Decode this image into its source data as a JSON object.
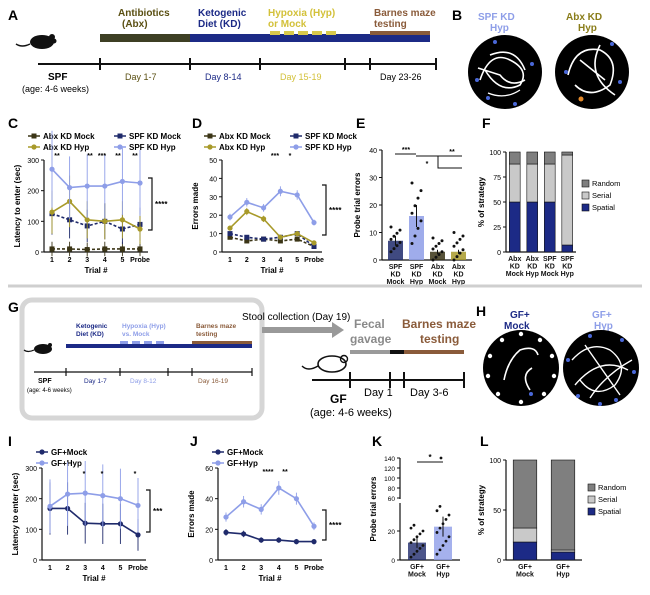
{
  "panels": {
    "A": "A",
    "B": "B",
    "C": "C",
    "D": "D",
    "E": "E",
    "F": "F",
    "G": "G",
    "H": "H",
    "I": "I",
    "J": "J",
    "K": "K",
    "L": "L"
  },
  "panelA": {
    "phases": [
      "Antibiotics\n(Abx)",
      "Ketogenic\nDiet (KD)",
      "Hypoxia (Hyp)\nor Mock",
      "Barnes maze\ntesting"
    ],
    "left_label": "SPF",
    "left_sub": "(age: 4-6 weeks)",
    "days": [
      "Day 1-7",
      "Day 8-14",
      "Day 15-19",
      "Day 23-26"
    ]
  },
  "panelB": {
    "labels": [
      "SPF KD\nHyp",
      "Abx KD\nHyp"
    ]
  },
  "panelC": {
    "legend": [
      "Abx KD Mock",
      "SPF KD Mock",
      "Abx KD Hyp",
      "SPF KD Hyp"
    ],
    "ylabel": "Latency to enter (sec)",
    "xlabel": "Trial #",
    "xticks": [
      "1",
      "2",
      "3",
      "4",
      "5",
      "Probe"
    ],
    "yticks": [
      "0",
      "100",
      "200",
      "300"
    ],
    "sig_top": [
      "**",
      "**",
      "***",
      "**",
      "**"
    ],
    "sig_side": "****"
  },
  "panelD": {
    "legend": [
      "Abx KD Mock",
      "SPF KD Mock",
      "Abx KD Hyp",
      "SPF KD Hyp"
    ],
    "ylabel": "Errors made",
    "xlabel": "Trial #",
    "xticks": [
      "1",
      "2",
      "3",
      "4",
      "5",
      "Probe"
    ],
    "yticks": [
      "0",
      "10",
      "20",
      "30",
      "40",
      "50"
    ],
    "sig_top": [
      "***",
      "*"
    ],
    "sig_side": "****"
  },
  "panelE": {
    "ylabel": "Probe trial errors",
    "yticks": [
      "0",
      "10",
      "20",
      "30",
      "40"
    ],
    "categories": [
      "SPF\nKD\nMock",
      "SPF\nKD\nHyp",
      "Abx\nKD\nMock",
      "Abx\nKD\nHyp"
    ],
    "sig": [
      "***",
      "**",
      "*"
    ]
  },
  "panelF": {
    "ylabel": "% of strategy",
    "yticks": [
      "0",
      "25",
      "50",
      "75",
      "100"
    ],
    "categories": [
      "Abx\nKD\nMock",
      "Abx\nKD\nHyp",
      "SPF\nKD\nMock",
      "SPF\nKD\nHyp"
    ],
    "legend": [
      "Random",
      "Serial",
      "Spatial"
    ]
  },
  "panelG": {
    "inset_phases": [
      "Ketogenic\nDiet (KD)",
      "Hypoxia (Hyp)\nvs. Mock",
      "Barnes maze\ntesting"
    ],
    "inset_left": "SPF",
    "inset_sub": "(age: 4-6 weeks)",
    "inset_days": [
      "Day 1-7",
      "Day 8-12",
      "Day 16-19"
    ],
    "stool": "Stool collection (Day 19)",
    "phases": [
      "Fecal\ngavage",
      "Barnes maze\ntesting"
    ],
    "left": "GF",
    "left_sub": "(age: 4-6 weeks)",
    "days": [
      "Day 1",
      "Day 3-6"
    ]
  },
  "panelH": {
    "labels": [
      "GF+\nMock",
      "GF+\nHyp"
    ]
  },
  "panelI": {
    "legend": [
      "GF+Mock",
      "GF+Hyp"
    ],
    "ylabel": "Latency to enter (sec)",
    "xlabel": "Trial #",
    "xticks": [
      "1",
      "2",
      "3",
      "4",
      "5",
      "Probe"
    ],
    "yticks": [
      "0",
      "100",
      "200",
      "300"
    ],
    "sig_top": [
      "*",
      "*",
      "*"
    ],
    "sig_side": "***"
  },
  "panelJ": {
    "legend": [
      "GF+Mock",
      "GF+Hyp"
    ],
    "ylabel": "Errors made",
    "xlabel": "Trial #",
    "xticks": [
      "1",
      "2",
      "3",
      "4",
      "5",
      "Probe"
    ],
    "yticks": [
      "0",
      "20",
      "40",
      "60"
    ],
    "sig_top": [
      "****",
      "**"
    ],
    "sig_side": "****"
  },
  "panelK": {
    "ylabel": "Probe trial errors",
    "yticks": [
      "0",
      "20",
      "40",
      "60",
      "80",
      "100",
      "120",
      "140"
    ],
    "categories": [
      "GF+\nMock",
      "GF+\nHyp"
    ],
    "sig": "*"
  },
  "panelL": {
    "ylabel": "% of strategy",
    "yticks": [
      "0",
      "50",
      "100"
    ],
    "categories": [
      "GF+\nMock",
      "GF+\nHyp"
    ],
    "legend": [
      "Random",
      "Serial",
      "Spatial"
    ]
  },
  "colors": {
    "abx_mock": "#3b3516",
    "spf_mock": "#1f2a6b",
    "abx_hyp": "#a89a2a",
    "spf_hyp": "#8e9ee8",
    "random": "#7f7f7f",
    "serial": "#c9c9c9",
    "spatial": "#1c2a86"
  },
  "chart_data": [
    {
      "id": "C",
      "type": "line",
      "title": "",
      "xlabel": "Trial #",
      "ylabel": "Latency to enter (sec)",
      "ylim": [
        0,
        300
      ],
      "categories": [
        "1",
        "2",
        "3",
        "4",
        "5",
        "Probe"
      ],
      "series": [
        {
          "name": "Abx KD Mock",
          "values": [
            10,
            10,
            8,
            10,
            10,
            10
          ]
        },
        {
          "name": "SPF KD Mock",
          "values": [
            125,
            105,
            85,
            100,
            75,
            90
          ]
        },
        {
          "name": "Abx KD Hyp",
          "values": [
            130,
            165,
            105,
            100,
            105,
            75
          ]
        },
        {
          "name": "SPF KD Hyp",
          "values": [
            270,
            210,
            215,
            215,
            230,
            225
          ]
        }
      ]
    },
    {
      "id": "D",
      "type": "line",
      "title": "",
      "xlabel": "Trial #",
      "ylabel": "Errors made",
      "ylim": [
        0,
        50
      ],
      "categories": [
        "1",
        "2",
        "3",
        "4",
        "5",
        "Probe"
      ],
      "series": [
        {
          "name": "Abx KD Mock",
          "values": [
            8,
            6,
            7,
            6,
            7,
            3
          ]
        },
        {
          "name": "SPF KD Mock",
          "values": [
            10,
            8,
            7,
            8,
            10,
            3
          ]
        },
        {
          "name": "Abx KD Hyp",
          "values": [
            13,
            22,
            18,
            8,
            10,
            5
          ]
        },
        {
          "name": "SPF KD Hyp",
          "values": [
            19,
            27,
            24,
            33,
            31,
            16
          ]
        }
      ]
    },
    {
      "id": "E",
      "type": "bar",
      "title": "",
      "ylabel": "Probe trial errors",
      "ylim": [
        0,
        40
      ],
      "categories": [
        "SPF KD Mock",
        "SPF KD Hyp",
        "Abx KD Mock",
        "Abx KD Hyp"
      ],
      "values": [
        7,
        16,
        3,
        3
      ]
    },
    {
      "id": "F",
      "type": "bar",
      "title": "",
      "ylabel": "% of strategy",
      "ylim": [
        0,
        100
      ],
      "categories": [
        "Abx KD Mock",
        "Abx KD Hyp",
        "SPF KD Mock",
        "SPF KD Hyp"
      ],
      "series": [
        {
          "name": "Spatial",
          "values": [
            50,
            50,
            50,
            7
          ]
        },
        {
          "name": "Serial",
          "values": [
            38,
            38,
            38,
            90
          ]
        },
        {
          "name": "Random",
          "values": [
            12,
            12,
            12,
            3
          ]
        }
      ]
    },
    {
      "id": "I",
      "type": "line",
      "title": "",
      "xlabel": "Trial #",
      "ylabel": "Latency to enter (sec)",
      "ylim": [
        0,
        300
      ],
      "categories": [
        "1",
        "2",
        "3",
        "4",
        "5",
        "Probe"
      ],
      "series": [
        {
          "name": "GF+Mock",
          "values": [
            168,
            168,
            120,
            118,
            118,
            82
          ]
        },
        {
          "name": "GF+Hyp",
          "values": [
            175,
            215,
            218,
            210,
            200,
            178
          ]
        }
      ]
    },
    {
      "id": "J",
      "type": "line",
      "title": "",
      "xlabel": "Trial #",
      "ylabel": "Errors made",
      "ylim": [
        0,
        60
      ],
      "categories": [
        "1",
        "2",
        "3",
        "4",
        "5",
        "Probe"
      ],
      "series": [
        {
          "name": "GF+Mock",
          "values": [
            18,
            17,
            13,
            13,
            12,
            12
          ]
        },
        {
          "name": "GF+Hyp",
          "values": [
            28,
            38,
            33,
            47,
            40,
            22
          ]
        }
      ]
    },
    {
      "id": "K",
      "type": "bar",
      "title": "",
      "ylabel": "Probe trial errors",
      "categories": [
        "GF+ Mock",
        "GF+ Hyp"
      ],
      "values": [
        12,
        23
      ]
    },
    {
      "id": "L",
      "type": "bar",
      "title": "",
      "ylabel": "% of strategy",
      "ylim": [
        0,
        100
      ],
      "categories": [
        "GF+ Mock",
        "GF+ Hyp"
      ],
      "series": [
        {
          "name": "Spatial",
          "values": [
            18,
            8
          ]
        },
        {
          "name": "Serial",
          "values": [
            14,
            2
          ]
        },
        {
          "name": "Random",
          "values": [
            68,
            90
          ]
        }
      ]
    }
  ]
}
